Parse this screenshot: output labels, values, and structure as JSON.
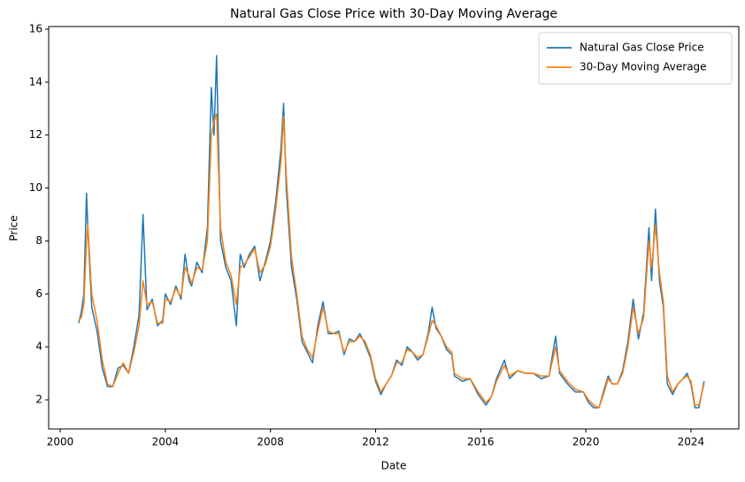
{
  "chart_data": {
    "type": "line",
    "title": "Natural Gas Close Price with 30-Day Moving Average",
    "x_label": "Date",
    "y_label": "Price",
    "x": [
      2000.7,
      2000.8,
      2000.9,
      2001.0,
      2001.05,
      2001.2,
      2001.4,
      2001.6,
      2001.8,
      2002.0,
      2002.2,
      2002.4,
      2002.6,
      2002.8,
      2003.0,
      2003.15,
      2003.3,
      2003.5,
      2003.7,
      2003.9,
      2004.0,
      2004.2,
      2004.4,
      2004.6,
      2004.75,
      2004.9,
      2005.0,
      2005.2,
      2005.4,
      2005.6,
      2005.75,
      2005.85,
      2005.95,
      2006.1,
      2006.3,
      2006.5,
      2006.7,
      2006.85,
      2007.0,
      2007.2,
      2007.4,
      2007.6,
      2007.8,
      2008.0,
      2008.2,
      2008.4,
      2008.5,
      2008.6,
      2008.8,
      2009.0,
      2009.2,
      2009.4,
      2009.6,
      2009.8,
      2010.0,
      2010.2,
      2010.4,
      2010.6,
      2010.8,
      2011.0,
      2011.2,
      2011.4,
      2011.6,
      2011.8,
      2012.0,
      2012.2,
      2012.4,
      2012.6,
      2012.8,
      2013.0,
      2013.2,
      2013.4,
      2013.6,
      2013.8,
      2014.0,
      2014.15,
      2014.3,
      2014.5,
      2014.7,
      2014.9,
      2015.0,
      2015.3,
      2015.6,
      2015.9,
      2016.2,
      2016.4,
      2016.6,
      2016.9,
      2017.1,
      2017.4,
      2017.7,
      2018.0,
      2018.3,
      2018.6,
      2018.85,
      2019.0,
      2019.3,
      2019.6,
      2019.9,
      2020.1,
      2020.3,
      2020.5,
      2020.7,
      2020.85,
      2021.0,
      2021.2,
      2021.4,
      2021.6,
      2021.8,
      2022.0,
      2022.2,
      2022.4,
      2022.5,
      2022.65,
      2022.8,
      2022.95,
      2023.1,
      2023.3,
      2023.5,
      2023.7,
      2023.85,
      2024.0,
      2024.15,
      2024.3,
      2024.5
    ],
    "series": [
      {
        "name": "Natural Gas Close Price",
        "color": "#1f77b4",
        "values": [
          4.9,
          5.3,
          6.0,
          9.8,
          8.5,
          5.5,
          4.6,
          3.2,
          2.5,
          2.5,
          3.2,
          3.3,
          3.0,
          4.0,
          5.2,
          9.0,
          5.4,
          5.8,
          4.8,
          5.0,
          6.0,
          5.6,
          6.3,
          5.8,
          7.5,
          6.5,
          6.3,
          7.2,
          6.8,
          8.5,
          13.8,
          12.0,
          15.0,
          8.0,
          7.0,
          6.5,
          4.8,
          7.5,
          7.0,
          7.5,
          7.8,
          6.5,
          7.2,
          8.0,
          9.5,
          11.5,
          13.2,
          10.0,
          7.0,
          5.8,
          4.2,
          3.8,
          3.4,
          4.8,
          5.7,
          4.5,
          4.5,
          4.6,
          3.7,
          4.3,
          4.2,
          4.5,
          4.1,
          3.6,
          2.7,
          2.2,
          2.6,
          2.9,
          3.5,
          3.3,
          4.0,
          3.8,
          3.5,
          3.7,
          4.5,
          5.5,
          4.7,
          4.4,
          3.9,
          3.7,
          2.9,
          2.7,
          2.8,
          2.2,
          1.8,
          2.1,
          2.8,
          3.5,
          2.8,
          3.1,
          3.0,
          3.0,
          2.8,
          2.9,
          4.4,
          3.0,
          2.6,
          2.3,
          2.3,
          1.9,
          1.7,
          1.7,
          2.4,
          2.9,
          2.6,
          2.6,
          3.1,
          4.2,
          5.8,
          4.3,
          5.3,
          8.5,
          6.5,
          9.2,
          6.5,
          5.5,
          2.6,
          2.2,
          2.6,
          2.8,
          3.0,
          2.6,
          1.7,
          1.7,
          2.7
        ]
      },
      {
        "name": "30-Day Moving Average",
        "color": "#ff7f0e",
        "values": [
          5.0,
          5.1,
          5.6,
          8.0,
          8.6,
          6.0,
          5.0,
          3.5,
          2.6,
          2.5,
          3.0,
          3.4,
          3.0,
          3.8,
          4.8,
          6.5,
          5.6,
          5.7,
          4.9,
          4.9,
          5.8,
          5.7,
          6.2,
          5.9,
          7.0,
          6.7,
          6.4,
          7.0,
          6.9,
          8.0,
          12.0,
          12.5,
          12.8,
          8.5,
          7.2,
          6.7,
          5.6,
          7.0,
          7.1,
          7.4,
          7.7,
          6.8,
          7.1,
          7.8,
          9.2,
          11.0,
          12.7,
          10.5,
          7.4,
          6.0,
          4.4,
          3.9,
          3.6,
          4.6,
          5.5,
          4.6,
          4.5,
          4.5,
          3.8,
          4.2,
          4.2,
          4.4,
          4.2,
          3.7,
          2.8,
          2.3,
          2.6,
          2.9,
          3.4,
          3.4,
          3.9,
          3.8,
          3.6,
          3.7,
          4.4,
          5.0,
          4.8,
          4.4,
          4.0,
          3.8,
          3.0,
          2.8,
          2.8,
          2.3,
          1.9,
          2.1,
          2.7,
          3.3,
          2.9,
          3.1,
          3.0,
          3.0,
          2.9,
          2.9,
          4.0,
          3.1,
          2.7,
          2.4,
          2.3,
          2.0,
          1.8,
          1.7,
          2.3,
          2.8,
          2.6,
          2.6,
          3.0,
          4.0,
          5.5,
          4.5,
          5.1,
          8.0,
          7.0,
          8.6,
          6.8,
          5.7,
          2.9,
          2.3,
          2.6,
          2.8,
          2.9,
          2.7,
          1.8,
          1.8,
          2.6
        ]
      }
    ],
    "xlim": [
      1999.56,
      2025.82
    ],
    "ylim": [
      0.9,
      16.1
    ],
    "xticks": [
      2000,
      2004,
      2008,
      2012,
      2016,
      2020,
      2024
    ],
    "yticks": [
      2,
      4,
      6,
      8,
      10,
      12,
      14,
      16
    ],
    "grid": false,
    "legend": "upper-right"
  }
}
